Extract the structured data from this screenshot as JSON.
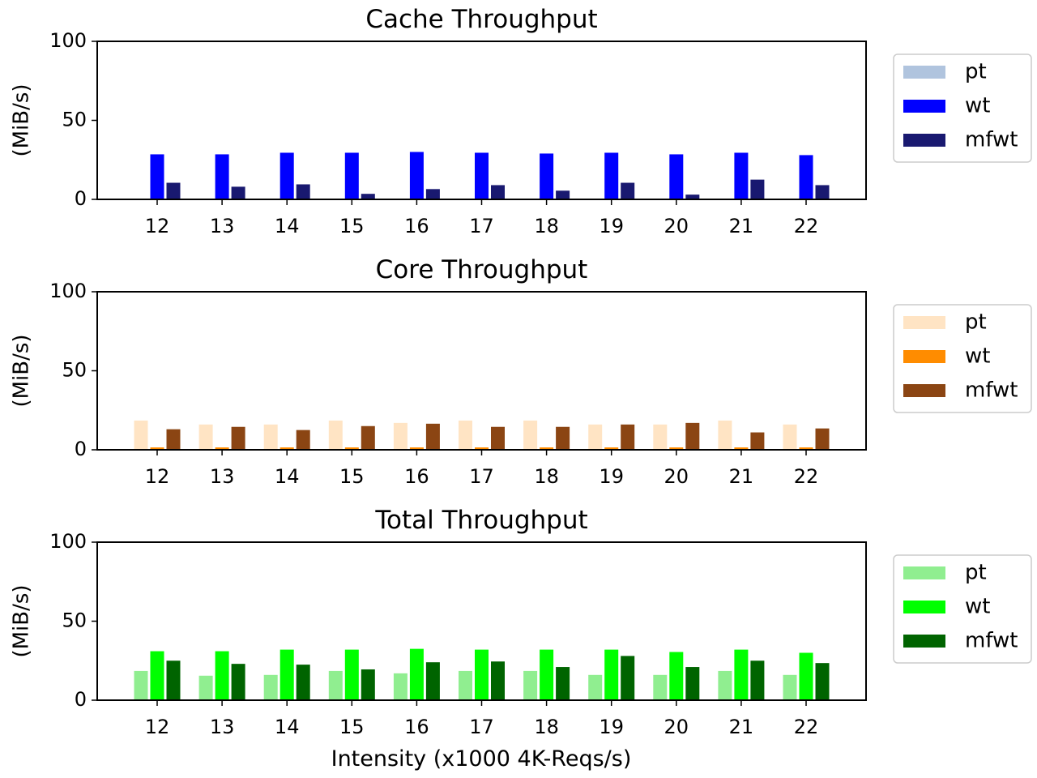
{
  "xlabel": "Intensity (x1000 4K-Reqs/s)",
  "chart_data": [
    {
      "type": "bar",
      "title": "Cache Throughput",
      "ylabel": "(MiB/s)",
      "ylim": [
        0,
        100
      ],
      "yticks": [
        "0",
        "50",
        "100"
      ],
      "categories": [
        "12",
        "13",
        "14",
        "15",
        "16",
        "17",
        "18",
        "19",
        "20",
        "21",
        "22"
      ],
      "legend_position": "right-outside",
      "series": [
        {
          "name": "pt",
          "color": "#b0c4de",
          "values": [
            0,
            0,
            0,
            0,
            0,
            0,
            0,
            0,
            0,
            0,
            0
          ]
        },
        {
          "name": "wt",
          "color": "#0000ff",
          "values": [
            28.5,
            28.5,
            29.5,
            29.5,
            30,
            29.5,
            29,
            29.5,
            28.5,
            29.5,
            28
          ]
        },
        {
          "name": "mfwt",
          "color": "#191970",
          "values": [
            10.5,
            8,
            9.5,
            3.5,
            6.5,
            9,
            5.5,
            10.5,
            3,
            12.5,
            9
          ]
        }
      ]
    },
    {
      "type": "bar",
      "title": "Core Throughput",
      "ylabel": "(MiB/s)",
      "ylim": [
        0,
        100
      ],
      "yticks": [
        "0",
        "50",
        "100"
      ],
      "categories": [
        "12",
        "13",
        "14",
        "15",
        "16",
        "17",
        "18",
        "19",
        "20",
        "21",
        "22"
      ],
      "legend_position": "right-outside",
      "series": [
        {
          "name": "pt",
          "color": "#ffe4c4",
          "values": [
            18.5,
            16,
            16,
            18.5,
            17,
            18.5,
            18.5,
            16,
            16,
            18.5,
            16
          ]
        },
        {
          "name": "wt",
          "color": "#ff8c00",
          "values": [
            1.5,
            1.5,
            1.5,
            1.5,
            1.5,
            1.5,
            1.5,
            1.5,
            1.5,
            1.5,
            1.5
          ]
        },
        {
          "name": "mfwt",
          "color": "#8b4513",
          "values": [
            13,
            14.5,
            12.5,
            15,
            16.5,
            14.5,
            14.5,
            16,
            17,
            11,
            13.5
          ]
        }
      ]
    },
    {
      "type": "bar",
      "title": "Total Throughput",
      "ylabel": "(MiB/s)",
      "ylim": [
        0,
        100
      ],
      "yticks": [
        "0",
        "50",
        "100"
      ],
      "categories": [
        "12",
        "13",
        "14",
        "15",
        "16",
        "17",
        "18",
        "19",
        "20",
        "21",
        "22"
      ],
      "legend_position": "right-outside",
      "series": [
        {
          "name": "pt",
          "color": "#90ee90",
          "values": [
            18.5,
            15.5,
            16,
            18.5,
            17,
            18.5,
            18.5,
            16,
            16,
            18.5,
            16
          ]
        },
        {
          "name": "wt",
          "color": "#00ff00",
          "values": [
            31,
            31,
            32,
            32,
            32.5,
            32,
            32,
            32,
            30.5,
            32,
            30
          ]
        },
        {
          "name": "mfwt",
          "color": "#006400",
          "values": [
            25,
            23,
            22.5,
            19.5,
            24,
            24.5,
            21,
            28,
            21,
            25,
            23.5
          ]
        }
      ]
    }
  ]
}
